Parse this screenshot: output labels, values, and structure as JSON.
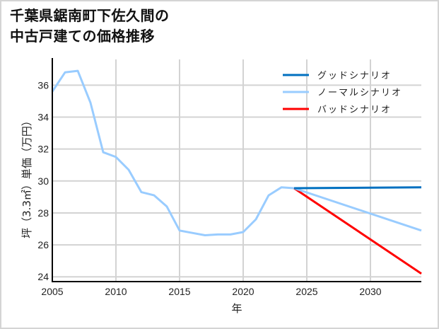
{
  "title": {
    "line1": "千葉県鋸南町下佐久間の",
    "line2": "中古戸建ての価格推移"
  },
  "colors": {
    "good": "#0070c0",
    "normal": "#99ccff",
    "bad": "#ff0000",
    "grid": "#d3d3d3",
    "axis": "#000000"
  },
  "chart_data": {
    "type": "line",
    "title": "千葉県鋸南町下佐久間の中古戸建ての価格推移",
    "xlabel": "年",
    "ylabel": "坪（3.3㎡）単価（万円）",
    "xlim": [
      2005,
      2034
    ],
    "ylim": [
      23.7,
      37.7
    ],
    "xticks": [
      2005,
      2010,
      2015,
      2020,
      2025,
      2030
    ],
    "yticks": [
      24,
      26,
      28,
      30,
      32,
      34,
      36
    ],
    "grid": true,
    "legend_position": "upper right",
    "series": [
      {
        "name": "ノーマルシナリオ",
        "key": "historical",
        "x": [
          2005,
          2006,
          2007,
          2008,
          2009,
          2010,
          2011,
          2012,
          2013,
          2014,
          2015,
          2016,
          2017,
          2018,
          2019,
          2020,
          2021,
          2022,
          2023,
          2024
        ],
        "values": [
          35.6,
          36.8,
          36.9,
          34.9,
          31.8,
          31.5,
          30.7,
          29.3,
          29.1,
          28.4,
          26.9,
          26.75,
          26.6,
          26.65,
          26.65,
          26.8,
          27.6,
          29.1,
          29.6,
          29.55
        ]
      },
      {
        "name": "グッドシナリオ",
        "key": "good",
        "x": [
          2024,
          2034
        ],
        "values": [
          29.55,
          29.6
        ]
      },
      {
        "name": "ノーマルシナリオ",
        "key": "normal",
        "x": [
          2024,
          2034
        ],
        "values": [
          29.55,
          26.9
        ]
      },
      {
        "name": "バッドシナリオ",
        "key": "bad",
        "x": [
          2024,
          2034
        ],
        "values": [
          29.55,
          24.2
        ]
      }
    ]
  },
  "legend": {
    "items": [
      {
        "label": "グッドシナリオ",
        "color": "#0070c0"
      },
      {
        "label": "ノーマルシナリオ",
        "color": "#99ccff"
      },
      {
        "label": "バッドシナリオ",
        "color": "#ff0000"
      }
    ]
  },
  "axes": {
    "xlabel": "年",
    "ylabel": "坪（3.3㎡）単価（万円）"
  }
}
